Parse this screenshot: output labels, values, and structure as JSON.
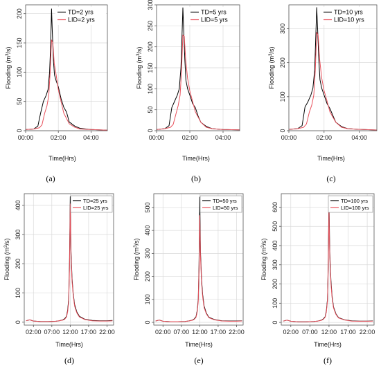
{
  "chart_data": [
    {
      "type": "line",
      "caption": "(a)",
      "xlabel": "Time(Hrs)",
      "ylabel_prefix": "Flooding (m",
      "ylabel_sup": "3",
      "ylabel_suffix": "/s)",
      "xlim": [
        0,
        300
      ],
      "ylim": [
        0,
        215
      ],
      "xticks": [
        0,
        120,
        240
      ],
      "xticklabels": [
        "00:00",
        "02:00",
        "04:00"
      ],
      "yticks": [
        0,
        50,
        100,
        150,
        200
      ],
      "grid": true,
      "legend_position": "top-right",
      "series": [
        {
          "name": "TD=2 yrs",
          "color": "#000000",
          "x": [
            0,
            30,
            45,
            55,
            65,
            75,
            82,
            88,
            92,
            95,
            98,
            102,
            106,
            112,
            120,
            130,
            140,
            150,
            160,
            180,
            200,
            240,
            300
          ],
          "y": [
            2,
            3,
            8,
            30,
            50,
            60,
            70,
            100,
            150,
            208,
            170,
            120,
            95,
            85,
            75,
            55,
            40,
            32,
            15,
            8,
            4,
            2,
            1
          ]
        },
        {
          "name": "LID=2 yrs",
          "color": "#e8505b",
          "x": [
            0,
            30,
            50,
            60,
            70,
            78,
            85,
            90,
            95,
            100,
            105,
            112,
            120,
            130,
            140,
            160,
            180,
            200,
            240,
            300
          ],
          "y": [
            2,
            3,
            5,
            10,
            30,
            42,
            60,
            100,
            155,
            150,
            115,
            95,
            70,
            50,
            30,
            12,
            6,
            3,
            2,
            1
          ]
        }
      ]
    },
    {
      "type": "line",
      "caption": "(b)",
      "xlabel": "Time(Hrs)",
      "ylabel_prefix": "Flooding (m",
      "ylabel_sup": "3",
      "ylabel_suffix": "/s)",
      "xlim": [
        0,
        300
      ],
      "ylim": [
        0,
        300
      ],
      "xticks": [
        0,
        120,
        240
      ],
      "xticklabels": [
        "00:00",
        "02:00",
        "04:00"
      ],
      "yticks": [
        0,
        50,
        100,
        150,
        200,
        250,
        300
      ],
      "grid": true,
      "legend_position": "top-right",
      "series": [
        {
          "name": "TD=5 yrs",
          "color": "#000000",
          "x": [
            0,
            30,
            45,
            55,
            65,
            75,
            82,
            88,
            92,
            95,
            98,
            102,
            106,
            112,
            120,
            130,
            140,
            150,
            160,
            180,
            200,
            240,
            300
          ],
          "y": [
            3,
            5,
            12,
            55,
            70,
            85,
            100,
            150,
            230,
            293,
            240,
            170,
            120,
            100,
            85,
            65,
            55,
            35,
            20,
            10,
            5,
            3,
            2
          ]
        },
        {
          "name": "LID=5 yrs",
          "color": "#e8505b",
          "x": [
            0,
            30,
            50,
            60,
            70,
            78,
            85,
            90,
            95,
            100,
            105,
            112,
            120,
            130,
            140,
            160,
            180,
            200,
            240,
            300
          ],
          "y": [
            3,
            5,
            8,
            15,
            40,
            60,
            85,
            140,
            228,
            225,
            170,
            125,
            95,
            70,
            45,
            20,
            8,
            5,
            3,
            2
          ]
        }
      ]
    },
    {
      "type": "line",
      "caption": "(c)",
      "xlabel": "Time(Hrs)",
      "ylabel_prefix": "Flooding (m",
      "ylabel_sup": "3",
      "ylabel_suffix": "/s)",
      "xlim": [
        0,
        300
      ],
      "ylim": [
        0,
        370
      ],
      "xticks": [
        0,
        120,
        240
      ],
      "xticklabels": [
        "00:00",
        "02:00",
        "04:00"
      ],
      "yticks": [
        0,
        100,
        200,
        300
      ],
      "grid": true,
      "legend_position": "top-right",
      "series": [
        {
          "name": "TD=10 yrs",
          "color": "#000000",
          "x": [
            0,
            30,
            45,
            55,
            65,
            75,
            82,
            88,
            92,
            95,
            98,
            102,
            106,
            112,
            120,
            130,
            140,
            150,
            160,
            180,
            200,
            240,
            300
          ],
          "y": [
            4,
            6,
            15,
            70,
            85,
            105,
            125,
            180,
            280,
            362,
            300,
            210,
            150,
            125,
            105,
            80,
            65,
            45,
            25,
            12,
            6,
            4,
            2
          ]
        },
        {
          "name": "LID=10 yrs",
          "color": "#e8505b",
          "x": [
            0,
            30,
            50,
            60,
            70,
            78,
            85,
            90,
            95,
            100,
            105,
            112,
            120,
            130,
            140,
            160,
            180,
            200,
            240,
            300
          ],
          "y": [
            4,
            6,
            10,
            20,
            55,
            75,
            105,
            175,
            290,
            280,
            210,
            155,
            118,
            88,
            55,
            25,
            10,
            6,
            4,
            2
          ]
        }
      ]
    },
    {
      "type": "line",
      "caption": "(d)",
      "xlabel": "Time(Hrs)",
      "ylabel_prefix": "Flooding (m",
      "ylabel_sup": "3",
      "ylabel_suffix": "/s)",
      "xlim": [
        -0.5,
        23.8
      ],
      "ylim": [
        -10,
        440
      ],
      "xticks": [
        2,
        7,
        12,
        17,
        22
      ],
      "xticklabels": [
        "02:00",
        "07:00",
        "12:00",
        "17:00",
        "22:00"
      ],
      "yticks": [
        0,
        100,
        200,
        300,
        400
      ],
      "grid": true,
      "legend_position": "top-right",
      "series": [
        {
          "name": "TD=25 yrs",
          "color": "#000000",
          "x": [
            0,
            1,
            2,
            4,
            6,
            8,
            9,
            10,
            10.5,
            11,
            11.3,
            11.6,
            11.8,
            12,
            12.2,
            12.5,
            12.8,
            13.2,
            13.8,
            14.5,
            16,
            18,
            20,
            22,
            23.5
          ],
          "y": [
            5,
            8,
            4,
            2,
            2,
            3,
            5,
            8,
            12,
            20,
            40,
            80,
            200,
            430,
            250,
            150,
            100,
            60,
            35,
            20,
            10,
            6,
            5,
            5,
            6
          ]
        },
        {
          "name": "LID=25 yrs",
          "color": "#e8505b",
          "x": [
            0,
            1,
            2,
            4,
            6,
            8,
            9,
            10,
            10.5,
            11,
            11.3,
            11.6,
            11.8,
            12,
            12.2,
            12.5,
            12.8,
            13.2,
            13.8,
            14.5,
            16,
            18,
            20,
            22,
            23.5
          ],
          "y": [
            5,
            8,
            4,
            2,
            2,
            3,
            5,
            7,
            10,
            18,
            35,
            70,
            180,
            405,
            235,
            140,
            95,
            55,
            32,
            18,
            9,
            5,
            4,
            4,
            5
          ]
        }
      ]
    },
    {
      "type": "line",
      "caption": "(e)",
      "xlabel": "Time(Hrs)",
      "ylabel_prefix": "Flooding (m",
      "ylabel_sup": "3",
      "ylabel_suffix": "/s)",
      "xlim": [
        -0.5,
        23.8
      ],
      "ylim": [
        -12,
        560
      ],
      "xticks": [
        2,
        7,
        12,
        17,
        22
      ],
      "xticklabels": [
        "02:00",
        "07:00",
        "12:00",
        "17:00",
        "22:00"
      ],
      "yticks": [
        0,
        100,
        200,
        300,
        400,
        500
      ],
      "grid": true,
      "legend_position": "top-right",
      "series": [
        {
          "name": "TD=50 yrs",
          "color": "#000000",
          "x": [
            0,
            1,
            2,
            4,
            6,
            8,
            9,
            10,
            10.5,
            11,
            11.3,
            11.6,
            11.8,
            12,
            12.2,
            12.5,
            12.8,
            13.2,
            13.8,
            14.5,
            16,
            18,
            20,
            22,
            23.5
          ],
          "y": [
            6,
            10,
            5,
            3,
            3,
            4,
            6,
            10,
            15,
            25,
            50,
            100,
            250,
            545,
            310,
            185,
            120,
            70,
            40,
            22,
            12,
            7,
            6,
            6,
            7
          ]
        },
        {
          "name": "LID=50 yrs",
          "color": "#e8505b",
          "x": [
            0,
            1,
            2,
            4,
            6,
            8,
            9,
            10,
            10.5,
            11,
            11.3,
            11.6,
            11.8,
            12,
            12.2,
            12.5,
            12.8,
            13.2,
            13.8,
            14.5,
            16,
            18,
            20,
            22,
            23.5
          ],
          "y": [
            6,
            10,
            5,
            3,
            3,
            4,
            6,
            9,
            13,
            22,
            44,
            90,
            230,
            465,
            290,
            170,
            110,
            64,
            37,
            20,
            11,
            6,
            5,
            5,
            6
          ]
        }
      ]
    },
    {
      "type": "line",
      "caption": "(f)",
      "xlabel": "Time(Hrs)",
      "ylabel_prefix": "Flooding (m",
      "ylabel_sup": "3",
      "ylabel_suffix": "/s)",
      "xlim": [
        -0.5,
        23.8
      ],
      "ylim": [
        -14,
        670
      ],
      "xticks": [
        2,
        7,
        12,
        17,
        22
      ],
      "xticklabels": [
        "02:00",
        "07:00",
        "12:00",
        "17:00",
        "22:00"
      ],
      "yticks": [
        0,
        100,
        200,
        300,
        400,
        500,
        600
      ],
      "grid": true,
      "legend_position": "top-right",
      "series": [
        {
          "name": "TD=100 yrs",
          "color": "#000000",
          "x": [
            0,
            1,
            2,
            4,
            6,
            8,
            9,
            10,
            10.5,
            11,
            11.3,
            11.6,
            11.8,
            12,
            12.2,
            12.5,
            12.8,
            13.2,
            13.8,
            14.5,
            16,
            18,
            20,
            22,
            23.5
          ],
          "y": [
            7,
            12,
            6,
            3,
            3,
            5,
            7,
            12,
            18,
            30,
            60,
            120,
            300,
            655,
            370,
            220,
            140,
            80,
            45,
            25,
            14,
            8,
            7,
            7,
            8
          ]
        },
        {
          "name": "LID=100 yrs",
          "color": "#e8505b",
          "x": [
            0,
            1,
            2,
            4,
            6,
            8,
            9,
            10,
            10.5,
            11,
            11.3,
            11.6,
            11.8,
            12,
            12.2,
            12.5,
            12.8,
            13.2,
            13.8,
            14.5,
            16,
            18,
            20,
            22,
            23.5
          ],
          "y": [
            7,
            12,
            6,
            3,
            3,
            5,
            7,
            11,
            16,
            27,
            54,
            110,
            280,
            590,
            345,
            205,
            130,
            75,
            42,
            23,
            13,
            7,
            6,
            6,
            7
          ]
        }
      ]
    }
  ]
}
